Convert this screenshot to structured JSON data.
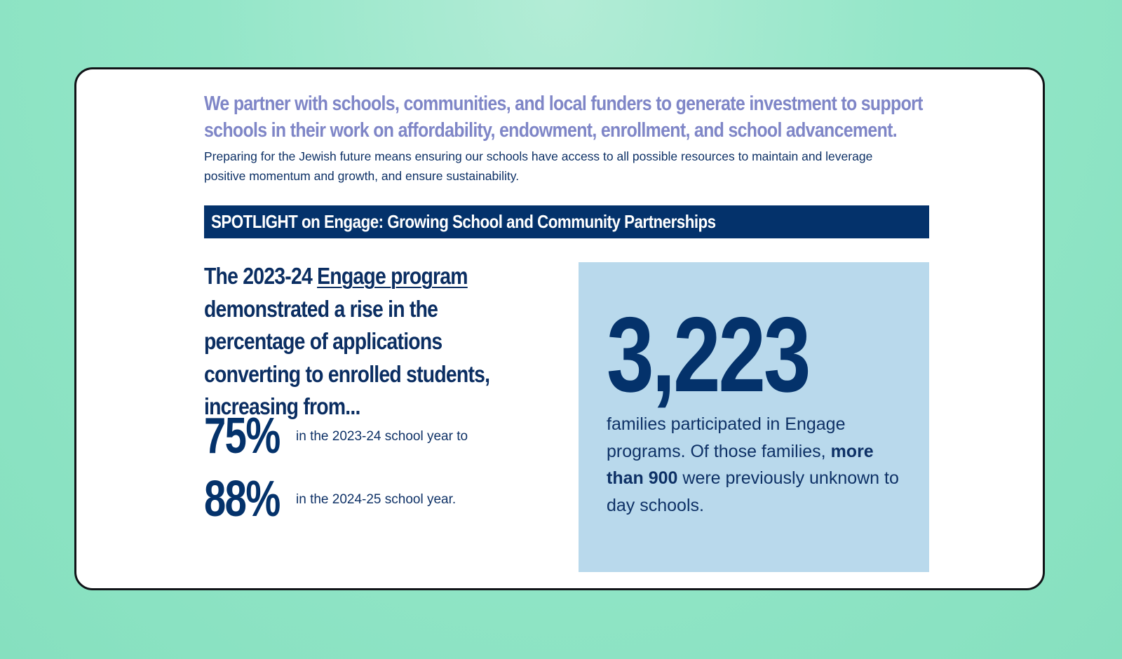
{
  "header": {
    "lead": "We partner with schools, communities, and local funders to generate investment to support schools in their work on affordability, endowment, enrollment, and school advancement.",
    "intro": "Preparing for the Jewish future means ensuring our schools have access to all possible resources to maintain and leverage positive momentum and growth, and ensure sustainability."
  },
  "banner": {
    "title": "SPOTLIGHT on Engage: Growing School and Community Partnerships"
  },
  "claim": {
    "prefix": "The 2023-24 ",
    "link": "Engage program",
    "suffix": " demonstrated a rise in the percentage of applications converting to enrolled students, increasing from..."
  },
  "stats": [
    {
      "value": "75%",
      "label": "in the 2023-24 school year to"
    },
    {
      "value": "88%",
      "label": "in the 2024-25 school year."
    }
  ],
  "panel": {
    "number": "3,223",
    "text_before": "families participated in Engage programs. Of those families, ",
    "text_bold": "more than 900",
    "text_after": " were previously unknown to day schools."
  },
  "colors": {
    "background": "#93e6c8",
    "navy": "#04326b",
    "lavender": "#7f86c7",
    "panel": "#b9d9ec"
  }
}
